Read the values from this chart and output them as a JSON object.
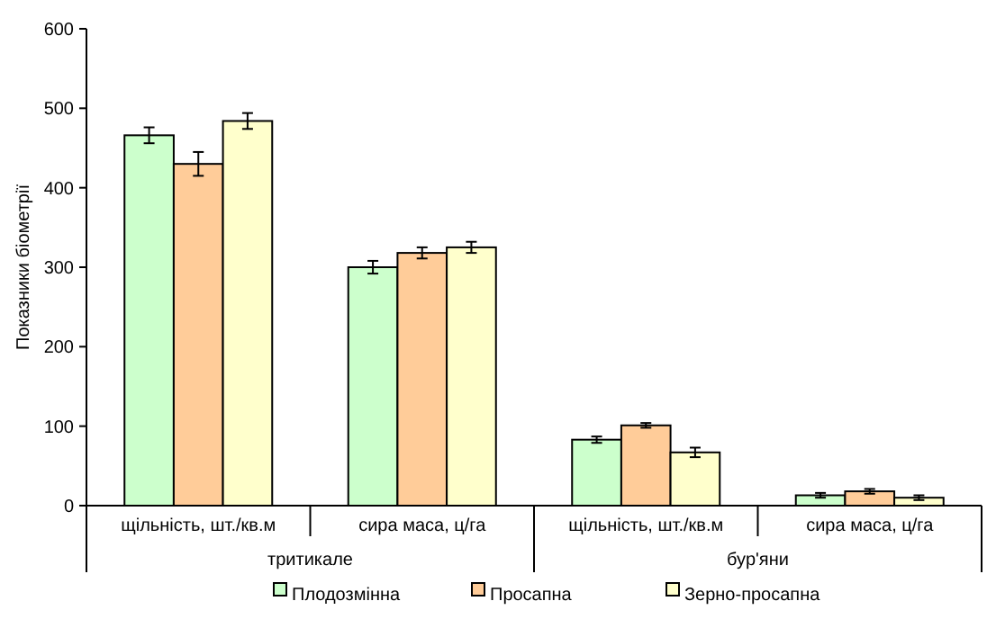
{
  "chart_data": {
    "type": "bar",
    "ylabel": "Показники біометрії",
    "categories": [
      "щільність, шт./кв.м",
      "сира маса, ц/га",
      "щільність, шт./кв.м",
      "сира маса, ц/га"
    ],
    "annotations": [
      "тритикале",
      "бур'яни"
    ],
    "series": [
      {
        "name": "Плодозмінна",
        "color": "#ccffcc",
        "values": [
          466,
          300,
          83,
          13
        ],
        "errors": [
          10,
          8,
          4,
          3
        ]
      },
      {
        "name": "Просапна",
        "color": "#ffcc99",
        "values": [
          430,
          318,
          101,
          18
        ],
        "errors": [
          15,
          7,
          3,
          3
        ]
      },
      {
        "name": "Зерно-просапна",
        "color": "#ffffcc",
        "values": [
          484,
          325,
          67,
          10
        ],
        "errors": [
          10,
          7,
          6,
          3
        ]
      }
    ],
    "ylim": [
      0,
      600
    ],
    "yticks": [
      0,
      100,
      200,
      300,
      400,
      500,
      600
    ],
    "grid": false,
    "legend": "bottom"
  }
}
